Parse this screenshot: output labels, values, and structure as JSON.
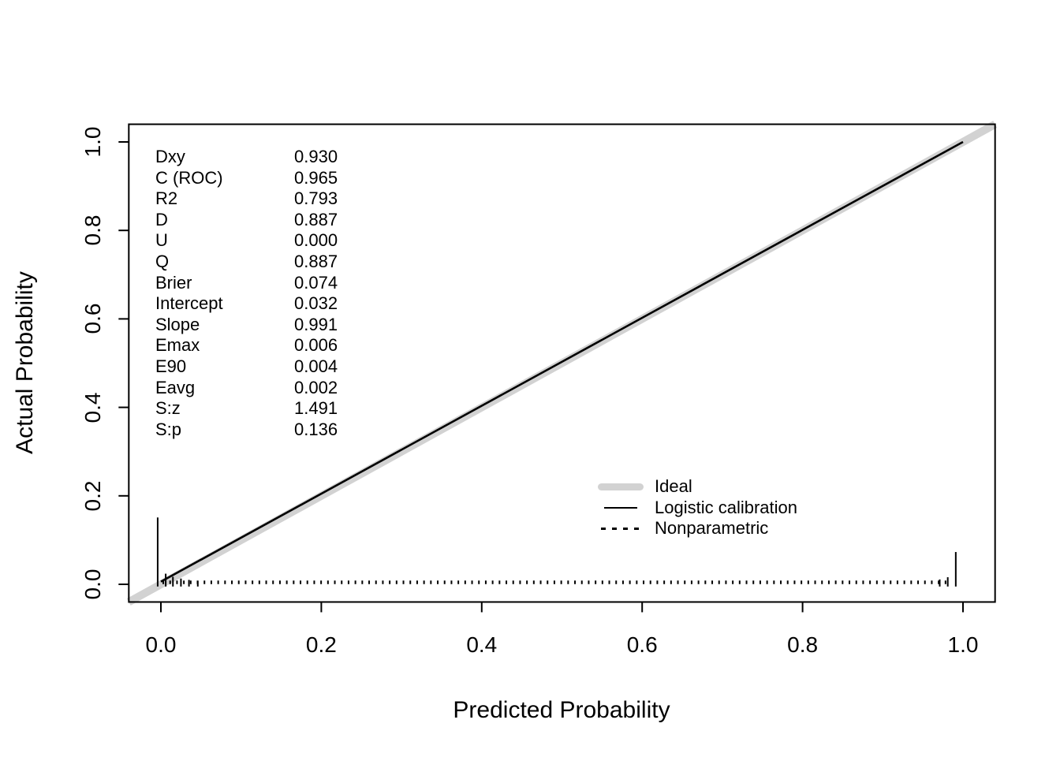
{
  "chart_data": {
    "type": "line",
    "title": "",
    "xlabel": "Predicted Probability",
    "ylabel": "Actual Probability",
    "xlim": [
      -0.04,
      1.04
    ],
    "ylim": [
      -0.04,
      1.04
    ],
    "grid": false,
    "x_ticks": {
      "values": [
        0.0,
        0.2,
        0.4,
        0.6,
        0.8,
        1.0
      ],
      "labels": [
        "0.0",
        "0.2",
        "0.4",
        "0.6",
        "0.8",
        "1.0"
      ]
    },
    "y_ticks": {
      "values": [
        0.0,
        0.2,
        0.4,
        0.6,
        0.8,
        1.0
      ],
      "labels": [
        "0.0",
        "0.2",
        "0.4",
        "0.6",
        "0.8",
        "1.0"
      ]
    },
    "series": [
      {
        "name": "Ideal",
        "style": "ideal",
        "color": "#d2d2d2",
        "width": 10,
        "points": [
          [
            -0.04,
            -0.04
          ],
          [
            1.04,
            1.04
          ]
        ]
      },
      {
        "name": "Logistic calibration",
        "style": "solid",
        "color": "#000000",
        "width": 2.6,
        "points": [
          [
            0.0,
            0.006
          ],
          [
            1.0,
            1.0
          ]
        ]
      },
      {
        "name": "Nonparametric",
        "style": "dotted",
        "color": "#000000",
        "width": 4.5,
        "points": [
          [
            0.002,
            0.0045
          ],
          [
            0.98,
            0.0045
          ]
        ]
      }
    ],
    "rug_spikes": [
      {
        "x": -0.004,
        "h": 0.151
      },
      {
        "x": 0.006,
        "h": 0.024
      },
      {
        "x": 0.015,
        "h": 0.017
      },
      {
        "x": 0.025,
        "h": 0.013
      },
      {
        "x": 0.035,
        "h": 0.01
      },
      {
        "x": 0.046,
        "h": 0.008
      },
      {
        "x": 0.971,
        "h": 0.011
      },
      {
        "x": 0.981,
        "h": 0.016
      },
      {
        "x": 0.991,
        "h": 0.073
      }
    ],
    "legend": {
      "position": "inside-bottom-right",
      "items": [
        {
          "label": "Ideal",
          "style": "ideal"
        },
        {
          "label": "Logistic calibration",
          "style": "solid"
        },
        {
          "label": "Nonparametric",
          "style": "dotted"
        }
      ]
    }
  },
  "stats": [
    {
      "label": "Dxy",
      "value": "0.930"
    },
    {
      "label": "C (ROC)",
      "value": "0.965"
    },
    {
      "label": "R2",
      "value": "0.793"
    },
    {
      "label": "D",
      "value": "0.887"
    },
    {
      "label": "U",
      "value": "0.000"
    },
    {
      "label": "Q",
      "value": "0.887"
    },
    {
      "label": "Brier",
      "value": "0.074"
    },
    {
      "label": "Intercept",
      "value": "0.032"
    },
    {
      "label": "Slope",
      "value": "0.991"
    },
    {
      "label": "Emax",
      "value": "0.006"
    },
    {
      "label": "E90",
      "value": "0.004"
    },
    {
      "label": "Eavg",
      "value": "0.002"
    },
    {
      "label": "S:z",
      "value": "1.491"
    },
    {
      "label": "S:p",
      "value": "0.136"
    }
  ]
}
